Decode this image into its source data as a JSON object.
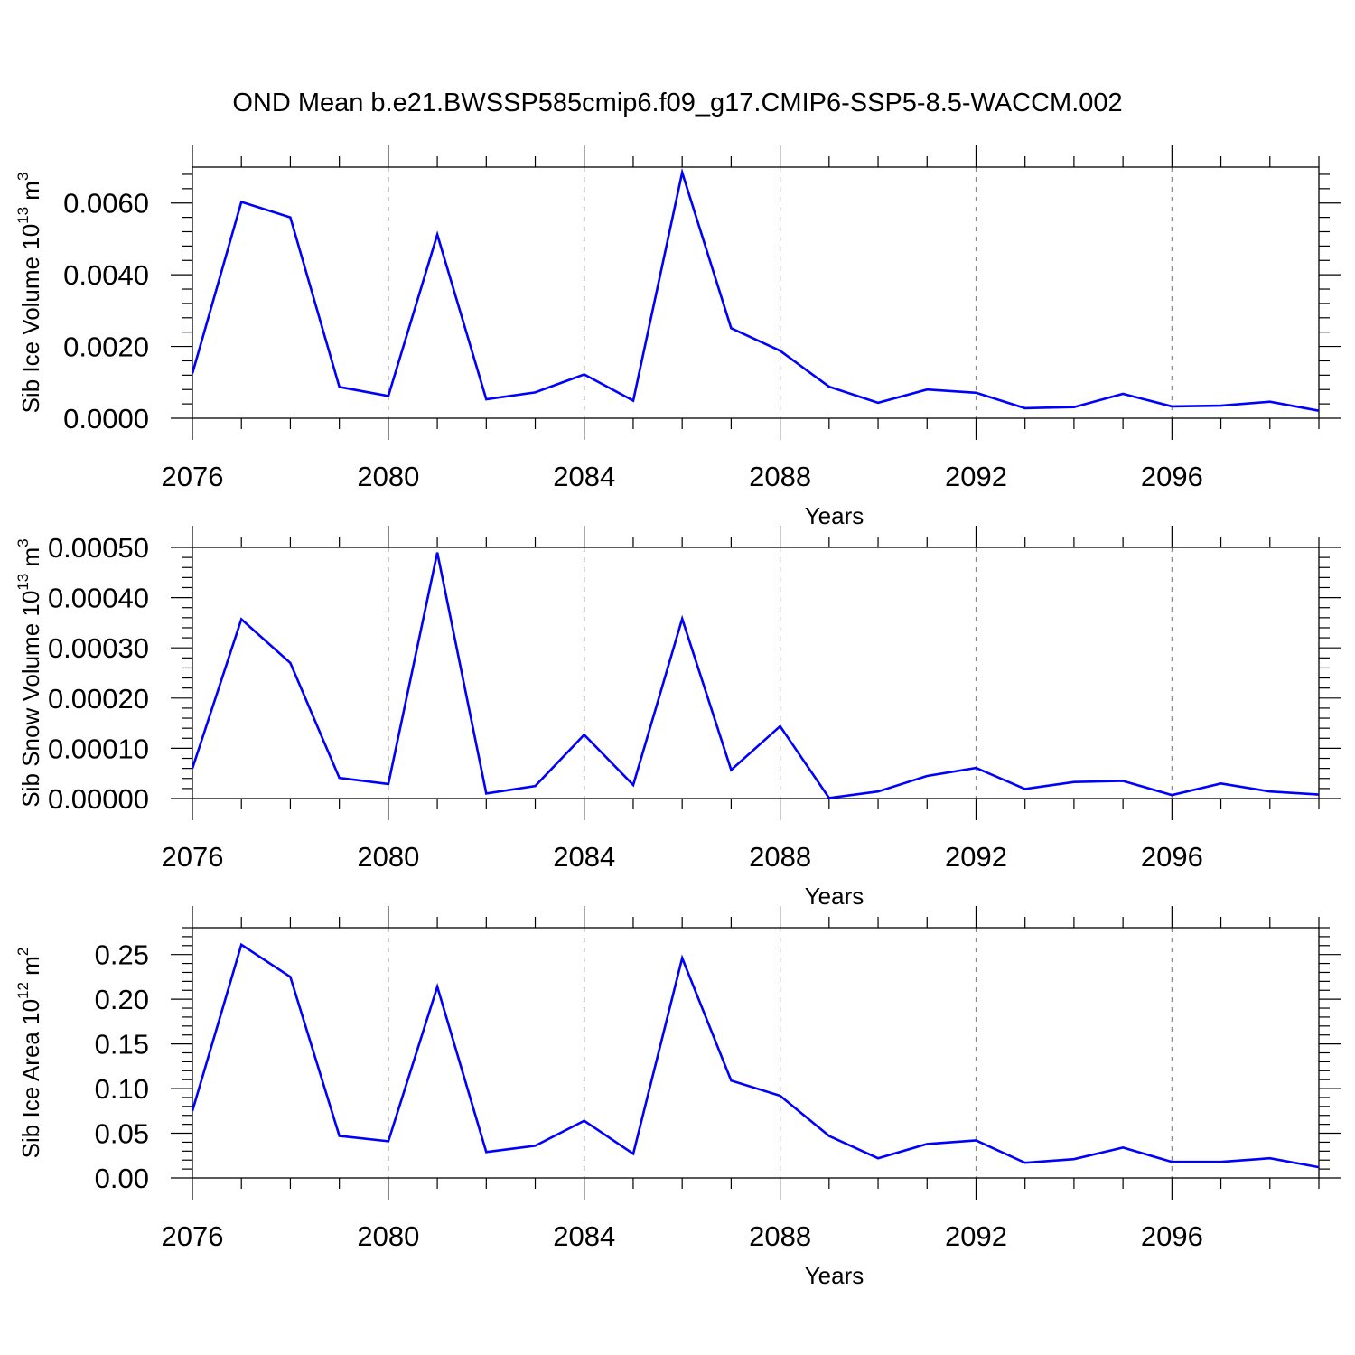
{
  "title": "OND Mean b.e21.BWSSP585cmip6.f09_g17.CMIP6-SSP5-8.5-WACCM.002",
  "colors": {
    "line": "#0000ff",
    "axis": "#000000",
    "grid": "#888888"
  },
  "chart_data": [
    {
      "type": "line",
      "xlabel": "Years",
      "ylabel": {
        "text": "Sib Ice Volume 10",
        "sup": "13",
        "unit": " m",
        "unit_sup": "3"
      },
      "xlim": [
        2076,
        2099
      ],
      "ylim": [
        0,
        0.007
      ],
      "xticks": [
        2076,
        2080,
        2084,
        2088,
        2092,
        2096
      ],
      "xtick_labels": [
        "2076",
        "2080",
        "2084",
        "2088",
        "2092",
        "2096"
      ],
      "yticks": [
        0,
        0.002,
        0.004,
        0.006
      ],
      "ytick_labels": [
        "0.0000",
        "0.0020",
        "0.0040",
        "0.0060"
      ],
      "x": [
        2076,
        2077,
        2078,
        2079,
        2080,
        2081,
        2082,
        2083,
        2084,
        2085,
        2086,
        2087,
        2088,
        2089,
        2090,
        2091,
        2092,
        2093,
        2094,
        2095,
        2096,
        2097,
        2098,
        2099
      ],
      "series": [
        {
          "name": "Sib Ice Volume",
          "values": [
            0.00125,
            0.00603,
            0.0056,
            0.00087,
            0.00062,
            0.00512,
            0.00053,
            0.00072,
            0.00122,
            0.00049,
            0.00685,
            0.00251,
            0.00188,
            0.00088,
            0.00043,
            0.0008,
            0.00071,
            0.00028,
            0.00031,
            0.00068,
            0.00033,
            0.00035,
            0.00046,
            0.00021
          ]
        }
      ]
    },
    {
      "type": "line",
      "xlabel": "Years",
      "ylabel": {
        "text": "Sib Snow Volume 10",
        "sup": "13",
        "unit": " m",
        "unit_sup": "3"
      },
      "xlim": [
        2076,
        2099
      ],
      "ylim": [
        0,
        0.0005
      ],
      "xticks": [
        2076,
        2080,
        2084,
        2088,
        2092,
        2096
      ],
      "xtick_labels": [
        "2076",
        "2080",
        "2084",
        "2088",
        "2092",
        "2096"
      ],
      "yticks": [
        0,
        0.0001,
        0.0002,
        0.0003,
        0.0004,
        0.0005
      ],
      "ytick_labels": [
        "0.00000",
        "0.00010",
        "0.00020",
        "0.00030",
        "0.00040",
        "0.00050"
      ],
      "x": [
        2076,
        2077,
        2078,
        2079,
        2080,
        2081,
        2082,
        2083,
        2084,
        2085,
        2086,
        2087,
        2088,
        2089,
        2090,
        2091,
        2092,
        2093,
        2094,
        2095,
        2096,
        2097,
        2098,
        2099
      ],
      "series": [
        {
          "name": "Sib Snow Volume",
          "values": [
            6e-05,
            0.000357,
            0.00027,
            4.1e-05,
            2.9e-05,
            0.00049,
            1e-05,
            2.5e-05,
            0.000127,
            2.7e-05,
            0.000358,
            5.7e-05,
            0.000144,
            1e-06,
            1.4e-05,
            4.5e-05,
            6.1e-05,
            1.9e-05,
            3.3e-05,
            3.5e-05,
            7e-06,
            3e-05,
            1.4e-05,
            8e-06
          ]
        }
      ]
    },
    {
      "type": "line",
      "xlabel": "Years",
      "ylabel": {
        "text": "Sib Ice Area 10",
        "sup": "12",
        "unit": " m",
        "unit_sup": "2"
      },
      "xlim": [
        2076,
        2099
      ],
      "ylim": [
        0,
        0.28
      ],
      "xticks": [
        2076,
        2080,
        2084,
        2088,
        2092,
        2096
      ],
      "xtick_labels": [
        "2076",
        "2080",
        "2084",
        "2088",
        "2092",
        "2096"
      ],
      "yticks": [
        0,
        0.05,
        0.1,
        0.15,
        0.2,
        0.25
      ],
      "ytick_labels": [
        "0.00",
        "0.05",
        "0.10",
        "0.15",
        "0.20",
        "0.25"
      ],
      "x": [
        2076,
        2077,
        2078,
        2079,
        2080,
        2081,
        2082,
        2083,
        2084,
        2085,
        2086,
        2087,
        2088,
        2089,
        2090,
        2091,
        2092,
        2093,
        2094,
        2095,
        2096,
        2097,
        2098,
        2099
      ],
      "series": [
        {
          "name": "Sib Ice Area",
          "values": [
            0.075,
            0.261,
            0.225,
            0.047,
            0.041,
            0.214,
            0.029,
            0.036,
            0.064,
            0.027,
            0.246,
            0.109,
            0.092,
            0.047,
            0.022,
            0.038,
            0.042,
            0.017,
            0.021,
            0.034,
            0.018,
            0.018,
            0.022,
            0.012
          ]
        }
      ]
    }
  ]
}
